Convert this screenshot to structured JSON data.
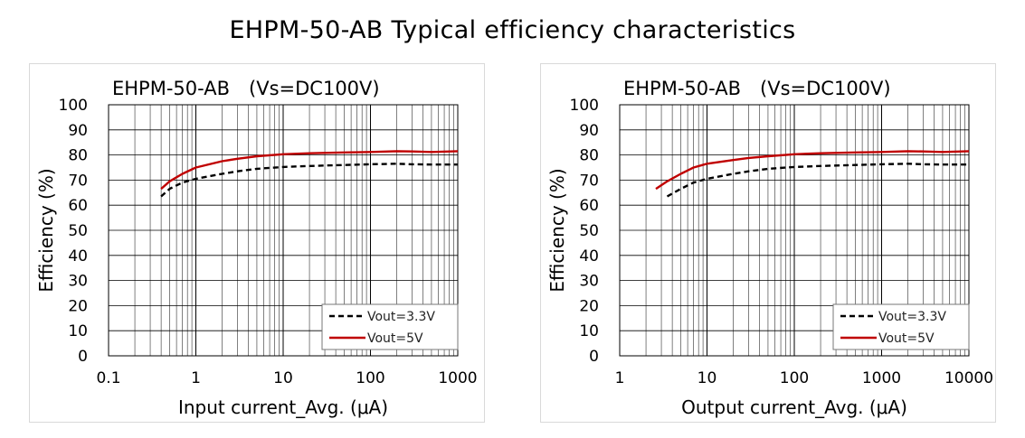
{
  "page_title": "EHPM-50-AB Typical efficiency characteristics",
  "colors": {
    "series_33": "#000000",
    "series_5": "#c00000",
    "grid": "#000000"
  },
  "chart_data": [
    {
      "type": "line",
      "title": "EHPM-50-AB　(Vs=DC100V)",
      "xlabel": "Input current_Avg. (μA)",
      "ylabel": "Efficiency (%)",
      "xscale": "log",
      "xlim": [
        0.1,
        1000
      ],
      "ylim": [
        0,
        100
      ],
      "xticks": [
        0.1,
        1,
        10,
        100,
        1000
      ],
      "xtick_labels": [
        "0.1",
        "1",
        "10",
        "100",
        "1000"
      ],
      "yticks": [
        0,
        10,
        20,
        30,
        40,
        50,
        60,
        70,
        80,
        90,
        100
      ],
      "ytick_labels": [
        "0",
        "10",
        "20",
        "30",
        "40",
        "50",
        "60",
        "70",
        "80",
        "90",
        "100"
      ],
      "grid": true,
      "legend_position": "bottom-right",
      "series": [
        {
          "name": "Vout=3.3V",
          "style": "dashed",
          "color": "#000000",
          "x": [
            0.4,
            0.5,
            0.7,
            1,
            2,
            3,
            5,
            10,
            20,
            50,
            100,
            200,
            300,
            500,
            1000
          ],
          "y": [
            63.5,
            66.5,
            69,
            70.5,
            72.5,
            73.5,
            74.5,
            75.2,
            75.6,
            76,
            76.3,
            76.5,
            76.3,
            76.2,
            76.2
          ]
        },
        {
          "name": "Vout=5V",
          "style": "solid",
          "color": "#c00000",
          "x": [
            0.4,
            0.5,
            0.7,
            1,
            2,
            3,
            5,
            10,
            20,
            50,
            100,
            200,
            300,
            500,
            1000
          ],
          "y": [
            66.5,
            69.5,
            72.5,
            75,
            77.5,
            78.5,
            79.5,
            80.3,
            80.7,
            81,
            81.2,
            81.5,
            81.4,
            81.2,
            81.5
          ]
        }
      ]
    },
    {
      "type": "line",
      "title": "EHPM-50-AB　(Vs=DC100V)",
      "xlabel": "Output current_Avg. (μA)",
      "ylabel": "Efficiency (%)",
      "xscale": "log",
      "xlim": [
        1,
        10000
      ],
      "ylim": [
        0,
        100
      ],
      "xticks": [
        1,
        10,
        100,
        1000,
        10000
      ],
      "xtick_labels": [
        "1",
        "10",
        "100",
        "1000",
        "10000"
      ],
      "yticks": [
        0,
        10,
        20,
        30,
        40,
        50,
        60,
        70,
        80,
        90,
        100
      ],
      "ytick_labels": [
        "0",
        "10",
        "20",
        "30",
        "40",
        "50",
        "60",
        "70",
        "80",
        "90",
        "100"
      ],
      "grid": true,
      "legend_position": "bottom-right",
      "series": [
        {
          "name": "Vout=3.3V",
          "style": "dashed",
          "color": "#000000",
          "x": [
            3.5,
            5,
            7,
            10,
            20,
            30,
            50,
            100,
            200,
            500,
            1000,
            2000,
            3000,
            5000,
            10000
          ],
          "y": [
            63.5,
            66.5,
            69,
            70.5,
            72.5,
            73.5,
            74.5,
            75.2,
            75.6,
            76,
            76.3,
            76.5,
            76.3,
            76.2,
            76.2
          ]
        },
        {
          "name": "Vout=5V",
          "style": "solid",
          "color": "#c00000",
          "x": [
            2.6,
            3.5,
            5,
            7,
            10,
            20,
            30,
            50,
            100,
            200,
            500,
            1000,
            2000,
            3000,
            5000,
            10000
          ],
          "y": [
            66.5,
            69.5,
            72.5,
            75,
            76.5,
            78,
            78.8,
            79.5,
            80.3,
            80.7,
            81,
            81.2,
            81.5,
            81.4,
            81.2,
            81.5
          ]
        }
      ]
    }
  ]
}
